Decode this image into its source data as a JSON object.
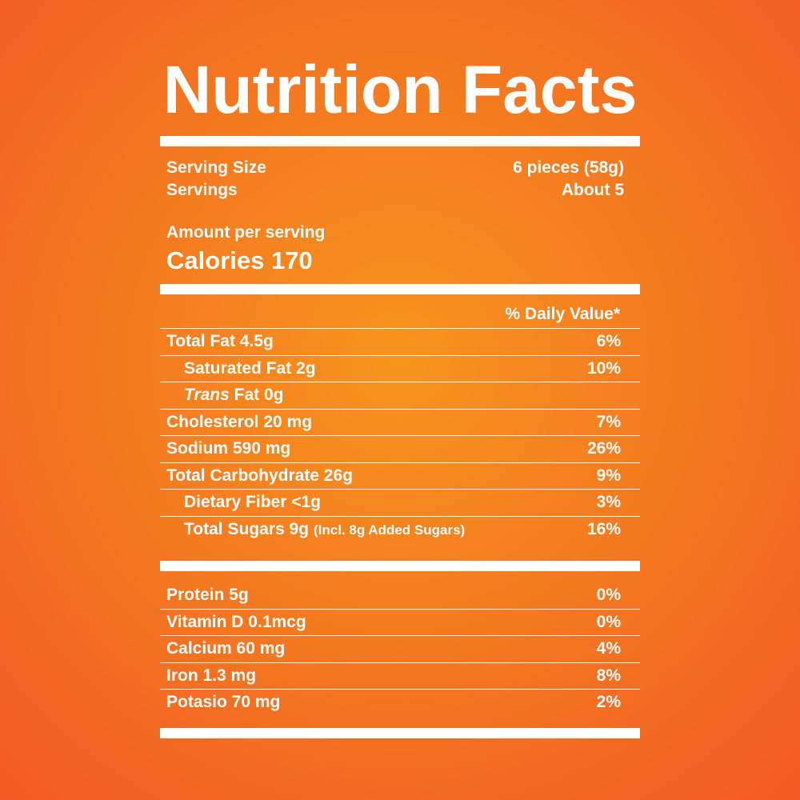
{
  "title": "Nutrition Facts",
  "serving": {
    "size_label": "Serving Size",
    "size_value": "6 pieces (58g)",
    "servings_label": "Servings",
    "servings_value": "About 5"
  },
  "amount_label": "Amount per serving",
  "calories": "Calories 170",
  "daily_value_header": "% Daily Value*",
  "nutrients": [
    {
      "name": "Total Fat 4.5g",
      "dv": "6%"
    },
    {
      "name": "Saturated Fat 2g",
      "dv": "10%"
    },
    {
      "name_italic": "Trans",
      "name": " Fat 0g",
      "dv": ""
    },
    {
      "name": "Cholesterol 20 mg",
      "dv": "7%"
    },
    {
      "name": "Sodium 590 mg",
      "dv": "26%"
    },
    {
      "name": "Total Carbohydrate 26g",
      "dv": "9%"
    },
    {
      "name": "Dietary Fiber <1g",
      "dv": "3%"
    },
    {
      "name": "Total Sugars 9g",
      "note": "(Incl. 8g Added Sugars)",
      "dv": "16%"
    }
  ],
  "micronutrients": [
    {
      "name": "Protein 5g",
      "dv": "0%"
    },
    {
      "name": "Vitamin D 0.1mcg",
      "dv": "0%"
    },
    {
      "name": "Calcium 60 mg",
      "dv": "4%"
    },
    {
      "name": "Iron 1.3 mg",
      "dv": "8%"
    },
    {
      "name": "Potasio 70 mg",
      "dv": "2%"
    }
  ],
  "colors": {
    "background_center": "#f7941d",
    "background_edge": "#f15a24",
    "text": "#ffffff"
  }
}
